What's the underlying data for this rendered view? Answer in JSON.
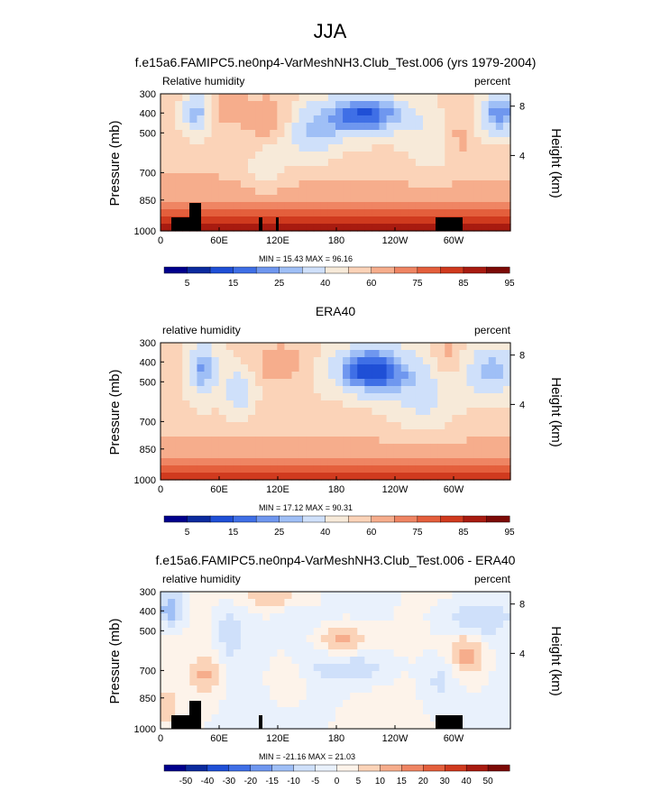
{
  "page_title": "JJA",
  "colors": {
    "seq": [
      "#00008c",
      "#0b2a9e",
      "#1f4fd6",
      "#3f6fe6",
      "#6f97ef",
      "#9fbff6",
      "#cfe0fa",
      "#f7ead9",
      "#fbd3b8",
      "#f6ad8c",
      "#ef8563",
      "#e45f3c",
      "#d03a1e",
      "#a81b10",
      "#7c0a06"
    ],
    "div": [
      "#00008c",
      "#0b2a9e",
      "#1f4fd6",
      "#3f6fe6",
      "#6f97ef",
      "#9fbff6",
      "#cfe0fa",
      "#e9f1fc",
      "#fdf3ea",
      "#fbd3b8",
      "#f6ad8c",
      "#ef8563",
      "#e45f3c",
      "#d03a1e",
      "#a81b10",
      "#7c0a06"
    ],
    "topo": "#000000"
  },
  "chart_data": [
    {
      "type": "heatmap",
      "title": "f.e15a6.FAMIPC5.ne0np4-VarMeshNH3.Club_Test.006 (yrs 1979-2004)",
      "left_string": "Relative humidity",
      "right_string": "percent",
      "ylabel": "Pressure (mb)",
      "ylabel_right": "Height (km)",
      "y_ticks": [
        "300",
        "400",
        "500",
        "700",
        "850",
        "1000"
      ],
      "y_right_ticks": [
        "8",
        "4"
      ],
      "x_ticks": [
        "0",
        "60E",
        "120E",
        "180",
        "120W",
        "60W"
      ],
      "stats": "MIN =  15.43  MAX =  96.16",
      "colorbar_labels": [
        "5",
        "15",
        "25",
        "40",
        "60",
        "75",
        "85",
        "95"
      ],
      "palette": "seq",
      "field": "model",
      "topography": true
    },
    {
      "type": "heatmap",
      "title": "ERA40",
      "left_string": "relative humidity",
      "right_string": "percent",
      "ylabel": "Pressure (mb)",
      "ylabel_right": "Height (km)",
      "y_ticks": [
        "300",
        "400",
        "500",
        "700",
        "850",
        "1000"
      ],
      "y_right_ticks": [
        "8",
        "4"
      ],
      "x_ticks": [
        "0",
        "60E",
        "120E",
        "180",
        "120W",
        "60W"
      ],
      "stats": "MIN =  17.12  MAX =  90.31",
      "colorbar_labels": [
        "5",
        "15",
        "25",
        "40",
        "60",
        "75",
        "85",
        "95"
      ],
      "palette": "seq",
      "field": "obs",
      "topography": false
    },
    {
      "type": "heatmap",
      "title": "f.e15a6.FAMIPC5.ne0np4-VarMeshNH3.Club_Test.006 - ERA40",
      "left_string": "relative humidity",
      "right_string": "percent",
      "ylabel": "Pressure (mb)",
      "ylabel_right": "Height (km)",
      "y_ticks": [
        "300",
        "400",
        "500",
        "700",
        "850",
        "1000"
      ],
      "y_right_ticks": [
        "8",
        "4"
      ],
      "x_ticks": [
        "0",
        "60E",
        "120E",
        "180",
        "120W",
        "60W"
      ],
      "stats": "MIN = -21.16  MAX =  21.03",
      "colorbar_labels": [
        "-50",
        "-40",
        "-30",
        "-20",
        "-15",
        "-10",
        "-5",
        "0",
        "5",
        "10",
        "15",
        "20",
        "30",
        "40",
        "50"
      ],
      "palette": "div",
      "field": "diff",
      "topography": true
    }
  ]
}
